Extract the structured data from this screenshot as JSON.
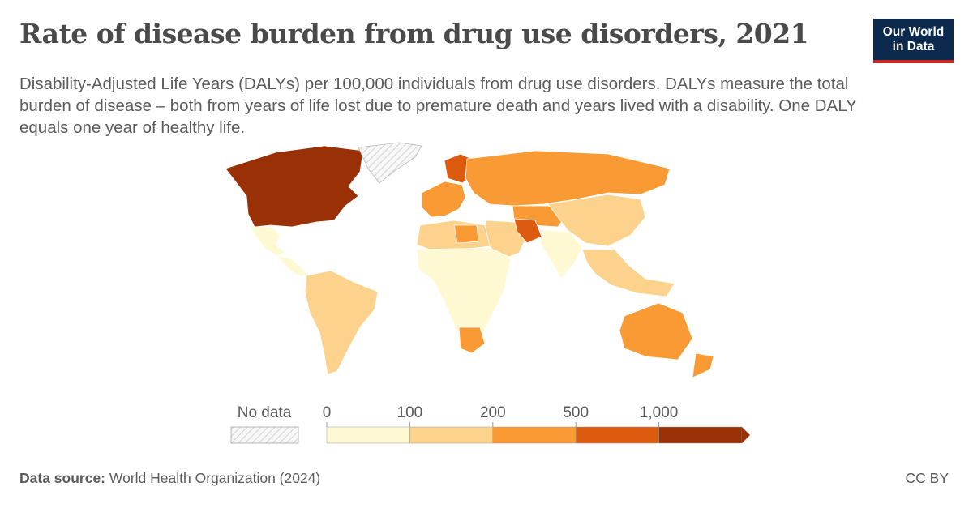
{
  "header": {
    "title": "Rate of disease burden from drug use disorders, 2021",
    "subtitle": "Disability-Adjusted Life Years (DALYs) per 100,000 individuals from drug use disorders. DALYs measure the total burden of disease – both from years of life lost due to premature death and years lived with a disability. One DALY equals one year of healthy life.",
    "logo_line1": "Our World",
    "logo_line2": "in Data"
  },
  "legend": {
    "no_data_label": "No data",
    "bins": [
      {
        "label": "0",
        "color": "#fef9d2"
      },
      {
        "label": "100",
        "color": "#fdd28d"
      },
      {
        "label": "200",
        "color": "#fa9a35"
      },
      {
        "label": "500",
        "color": "#dd5b0e"
      },
      {
        "label": "1,000",
        "color": "#9a3106"
      }
    ]
  },
  "colors": {
    "no_data": "#e4e4e4",
    "border": "#ffffff",
    "brand_navy": "#0c2a4d",
    "brand_red": "#ce261e"
  },
  "regions": [
    {
      "name": "North America",
      "color": "#9a3106"
    },
    {
      "name": "Greenland",
      "color": "#e4e4e4"
    },
    {
      "name": "Mexico",
      "color": "#fef9d2"
    },
    {
      "name": "Central America",
      "color": "#fef9d2"
    },
    {
      "name": "South America",
      "color": "#fdd28d"
    },
    {
      "name": "Western Europe",
      "color": "#fa9a35"
    },
    {
      "name": "Scandinavia",
      "color": "#dd5b0e"
    },
    {
      "name": "Russia",
      "color": "#fa9a35"
    },
    {
      "name": "Central Asia",
      "color": "#fa9a35"
    },
    {
      "name": "China",
      "color": "#fdd28d"
    },
    {
      "name": "South Asia",
      "color": "#fef9d2"
    },
    {
      "name": "Middle East",
      "color": "#fdd28d"
    },
    {
      "name": "Iran",
      "color": "#dd5b0e"
    },
    {
      "name": "North Africa",
      "color": "#fdd28d"
    },
    {
      "name": "Libya",
      "color": "#fa9a35"
    },
    {
      "name": "Sub-Saharan Africa",
      "color": "#fef9d2"
    },
    {
      "name": "South Africa",
      "color": "#fa9a35"
    },
    {
      "name": "Southeast Asia",
      "color": "#fdd28d"
    },
    {
      "name": "Australia",
      "color": "#fa9a35"
    },
    {
      "name": "New Zealand",
      "color": "#fa9a35"
    }
  ],
  "footer": {
    "source_label": "Data source:",
    "source_text": "World Health Organization (2024)",
    "license": "CC BY"
  }
}
